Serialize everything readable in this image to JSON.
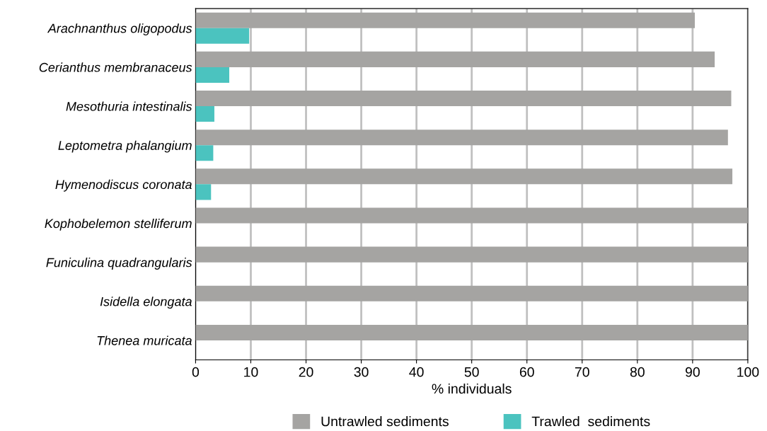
{
  "chart_data": {
    "type": "bar",
    "orientation": "horizontal",
    "xlabel": "% individuals",
    "categories": [
      "Arachnanthus oligopodus",
      "Cerianthus membranaceus",
      "Mesothuria intestinalis",
      "Leptometra phalangium",
      "Hymenodiscus coronata",
      "Kophobelemon stelliferum",
      "Funiculina quadrangularis",
      "Isidella elongata",
      "Thenea muricata"
    ],
    "series": [
      {
        "name": "Untrawled sediments",
        "color": "#a5a4a2",
        "values": [
          90.4,
          94.0,
          97.0,
          96.4,
          97.2,
          100,
          100,
          100,
          100
        ]
      },
      {
        "name": "Trawled  sediments",
        "color": "#4bc3bf",
        "values": [
          9.7,
          6.1,
          3.4,
          3.2,
          2.8,
          0,
          0,
          0,
          0
        ]
      }
    ],
    "xlim": [
      0,
      100
    ],
    "xticks": [
      0,
      10,
      20,
      30,
      40,
      50,
      60,
      70,
      80,
      90,
      100
    ],
    "grid": "x",
    "legend": "bottom"
  }
}
